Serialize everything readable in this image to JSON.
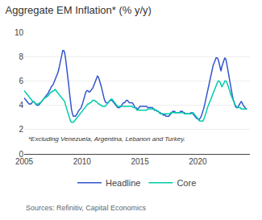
{
  "chart_data": {
    "type": "line",
    "title": "Aggregate EM Inflation* (% y/y)",
    "annotations": [
      "*Excluding Venezuela, Argentina, Lebanon and Turkey.",
      "Sources: Refinitiv, Capital Economics"
    ],
    "x": [
      2005.0,
      2005.08,
      2005.17,
      2005.25,
      2005.33,
      2005.42,
      2005.5,
      2005.58,
      2005.67,
      2005.75,
      2005.83,
      2005.92,
      2006.0,
      2006.08,
      2006.17,
      2006.25,
      2006.33,
      2006.42,
      2006.5,
      2006.58,
      2006.67,
      2006.75,
      2006.83,
      2006.92,
      2007.0,
      2007.08,
      2007.17,
      2007.25,
      2007.33,
      2007.42,
      2007.5,
      2007.58,
      2007.67,
      2007.75,
      2007.83,
      2007.92,
      2008.0,
      2008.08,
      2008.17,
      2008.25,
      2008.33,
      2008.42,
      2008.5,
      2008.58,
      2008.67,
      2008.75,
      2008.83,
      2008.92,
      2009.0,
      2009.08,
      2009.17,
      2009.25,
      2009.33,
      2009.42,
      2009.5,
      2009.58,
      2009.67,
      2009.75,
      2009.83,
      2009.92,
      2010.0,
      2010.08,
      2010.17,
      2010.25,
      2010.33,
      2010.42,
      2010.5,
      2010.58,
      2010.67,
      2010.75,
      2010.83,
      2010.92,
      2011.0,
      2011.08,
      2011.17,
      2011.25,
      2011.33,
      2011.42,
      2011.5,
      2011.58,
      2011.67,
      2011.75,
      2011.83,
      2011.92,
      2012.0,
      2012.08,
      2012.17,
      2012.25,
      2012.33,
      2012.42,
      2012.5,
      2012.58,
      2012.67,
      2012.75,
      2012.83,
      2012.92,
      2013.0,
      2013.08,
      2013.17,
      2013.25,
      2013.33,
      2013.42,
      2013.5,
      2013.58,
      2013.67,
      2013.75,
      2013.83,
      2013.92,
      2014.0,
      2014.08,
      2014.17,
      2014.25,
      2014.33,
      2014.42,
      2014.5,
      2014.58,
      2014.67,
      2014.75,
      2014.83,
      2014.92,
      2015.0,
      2015.08,
      2015.17,
      2015.25,
      2015.33,
      2015.42,
      2015.5,
      2015.58,
      2015.67,
      2015.75,
      2015.83,
      2015.92,
      2016.0,
      2016.08,
      2016.17,
      2016.25,
      2016.33,
      2016.42,
      2016.5,
      2016.58,
      2016.67,
      2016.75,
      2016.83,
      2016.92,
      2017.0,
      2017.08,
      2017.17,
      2017.25,
      2017.33,
      2017.42,
      2017.5,
      2017.58,
      2017.67,
      2017.75,
      2017.83,
      2017.92,
      2018.0,
      2018.08,
      2018.17,
      2018.25,
      2018.33,
      2018.42,
      2018.5,
      2018.58,
      2018.67,
      2018.75,
      2018.83,
      2018.92,
      2019.0,
      2019.08,
      2019.17,
      2019.25,
      2019.33,
      2019.42,
      2019.5,
      2019.58,
      2019.67,
      2019.75,
      2019.83,
      2019.92,
      2020.0,
      2020.08,
      2020.17,
      2020.25,
      2020.33,
      2020.42,
      2020.5,
      2020.58,
      2020.67,
      2020.75,
      2020.83,
      2020.92,
      2021.0,
      2021.08,
      2021.17,
      2021.25,
      2021.33,
      2021.42,
      2021.5,
      2021.58,
      2021.67,
      2021.75,
      2021.83,
      2021.92,
      2022.0,
      2022.08,
      2022.17,
      2022.25,
      2022.33,
      2022.42,
      2022.5,
      2022.58,
      2022.67,
      2022.75,
      2022.83,
      2022.92,
      2023.0,
      2023.08,
      2023.17,
      2023.25,
      2023.33,
      2023.42,
      2023.5,
      2023.58,
      2023.67,
      2023.75,
      2023.83,
      2023.92,
      2024.0,
      2024.08,
      2024.17,
      2024.25
    ],
    "series": [
      {
        "name": "Headline",
        "color": "#3355cc",
        "values": [
          4.6,
          4.5,
          4.4,
          4.3,
          4.2,
          4.1,
          4.1,
          4.1,
          4.2,
          4.3,
          4.3,
          4.2,
          4.1,
          4.0,
          4.0,
          4.0,
          4.1,
          4.2,
          4.3,
          4.4,
          4.5,
          4.6,
          4.7,
          4.8,
          4.9,
          5.0,
          5.2,
          5.3,
          5.5,
          5.6,
          5.7,
          5.9,
          6.1,
          6.3,
          6.5,
          6.7,
          7.0,
          7.4,
          7.8,
          8.2,
          8.5,
          8.5,
          8.3,
          7.8,
          7.2,
          6.5,
          5.8,
          5.0,
          4.2,
          3.7,
          3.3,
          3.1,
          3.1,
          3.1,
          3.2,
          3.3,
          3.5,
          3.6,
          3.7,
          3.8,
          4.0,
          4.3,
          4.6,
          4.9,
          5.1,
          5.2,
          5.2,
          5.1,
          5.1,
          5.2,
          5.3,
          5.4,
          5.6,
          5.8,
          6.1,
          6.3,
          6.4,
          6.3,
          6.1,
          5.8,
          5.5,
          5.1,
          4.8,
          4.5,
          4.3,
          4.2,
          4.2,
          4.2,
          4.3,
          4.4,
          4.4,
          4.4,
          4.3,
          4.2,
          4.1,
          4.0,
          3.9,
          3.8,
          3.8,
          3.8,
          3.9,
          4.0,
          4.1,
          4.2,
          4.2,
          4.3,
          4.4,
          4.4,
          4.3,
          4.2,
          4.2,
          4.2,
          4.2,
          4.1,
          3.9,
          3.8,
          3.8,
          3.7,
          3.7,
          3.8,
          3.9,
          3.9,
          3.9,
          3.9,
          3.9,
          3.9,
          3.9,
          3.9,
          3.8,
          3.8,
          3.8,
          3.8,
          3.8,
          3.8,
          3.7,
          3.6,
          3.6,
          3.6,
          3.5,
          3.5,
          3.4,
          3.4,
          3.3,
          3.3,
          3.2,
          3.2,
          3.2,
          3.1,
          3.1,
          3.1,
          3.1,
          3.2,
          3.3,
          3.4,
          3.5,
          3.5,
          3.5,
          3.4,
          3.4,
          3.4,
          3.4,
          3.4,
          3.5,
          3.5,
          3.5,
          3.4,
          3.4,
          3.3,
          3.3,
          3.3,
          3.3,
          3.3,
          3.3,
          3.4,
          3.4,
          3.3,
          3.2,
          3.1,
          3.0,
          2.9,
          2.9,
          2.8,
          2.9,
          3.0,
          3.2,
          3.4,
          3.7,
          4.0,
          4.4,
          4.8,
          5.1,
          5.5,
          5.9,
          6.3,
          6.7,
          7.0,
          7.3,
          7.5,
          7.8,
          7.9,
          7.9,
          7.8,
          7.5,
          7.1,
          6.8,
          7.2,
          7.5,
          7.8,
          7.9,
          7.8,
          7.5,
          7.0,
          6.5,
          6.0,
          5.5,
          5.0,
          4.7,
          4.4,
          4.1,
          3.9,
          3.8,
          3.8,
          3.9,
          4.1,
          4.2,
          4.3,
          4.2,
          4.0,
          3.9,
          3.8,
          3.7,
          3.7
        ]
      },
      {
        "name": "Core",
        "color": "#00ccaa",
        "values": [
          5.2,
          5.1,
          5.0,
          4.9,
          4.8,
          4.7,
          4.6,
          4.5,
          4.4,
          4.3,
          4.3,
          4.2,
          4.1,
          4.1,
          4.1,
          4.1,
          4.2,
          4.2,
          4.3,
          4.4,
          4.5,
          4.6,
          4.6,
          4.7,
          4.7,
          4.8,
          4.9,
          5.0,
          5.1,
          5.1,
          5.2,
          5.2,
          5.3,
          5.2,
          5.1,
          5.0,
          4.9,
          4.8,
          4.7,
          4.6,
          4.5,
          4.4,
          4.3,
          4.0,
          3.7,
          3.4,
          3.1,
          2.9,
          2.7,
          2.6,
          2.6,
          2.6,
          2.7,
          2.8,
          2.9,
          3.0,
          3.1,
          3.2,
          3.3,
          3.4,
          3.5,
          3.6,
          3.7,
          3.8,
          3.9,
          4.0,
          4.1,
          4.1,
          4.2,
          4.2,
          4.3,
          4.4,
          4.4,
          4.4,
          4.3,
          4.3,
          4.2,
          4.1,
          4.1,
          4.0,
          4.0,
          3.9,
          3.9,
          3.9,
          3.9,
          4.0,
          4.1,
          4.2,
          4.3,
          4.4,
          4.5,
          4.5,
          4.4,
          4.3,
          4.2,
          4.1,
          4.0,
          3.9,
          3.9,
          3.9,
          3.9,
          3.9,
          3.9,
          3.9,
          3.9,
          3.9,
          3.9,
          3.9,
          3.9,
          3.9,
          3.9,
          3.9,
          3.9,
          3.8,
          3.8,
          3.8,
          3.7,
          3.6,
          3.6,
          3.6,
          3.6,
          3.6,
          3.6,
          3.6,
          3.6,
          3.6,
          3.6,
          3.6,
          3.7,
          3.7,
          3.7,
          3.7,
          3.7,
          3.7,
          3.7,
          3.7,
          3.6,
          3.6,
          3.5,
          3.5,
          3.4,
          3.3,
          3.3,
          3.3,
          3.3,
          3.3,
          3.3,
          3.3,
          3.3,
          3.3,
          3.3,
          3.3,
          3.4,
          3.4,
          3.4,
          3.4,
          3.4,
          3.4,
          3.4,
          3.4,
          3.4,
          3.4,
          3.4,
          3.4,
          3.4,
          3.4,
          3.3,
          3.3,
          3.3,
          3.3,
          3.3,
          3.3,
          3.3,
          3.3,
          3.4,
          3.4,
          3.3,
          3.2,
          3.1,
          3.0,
          2.9,
          2.8,
          2.7,
          2.7,
          2.7,
          2.7,
          2.8,
          3.0,
          3.2,
          3.5,
          3.8,
          4.0,
          4.2,
          4.4,
          4.6,
          4.8,
          5.0,
          5.2,
          5.4,
          5.6,
          5.8,
          6.0,
          6.0,
          5.9,
          5.7,
          5.5,
          5.7,
          5.8,
          6.0,
          6.0,
          5.9,
          5.7,
          5.5,
          5.2,
          4.9,
          4.7,
          4.5,
          4.3,
          4.2,
          4.0,
          3.9,
          3.8,
          3.8,
          3.8,
          3.8,
          3.7,
          3.7,
          3.7,
          3.7,
          3.7,
          3.7,
          3.7
        ]
      }
    ],
    "xlim": [
      2005.0,
      2024.5
    ],
    "xticks": [
      2005,
      2010,
      2015,
      2020
    ],
    "ylim": [
      0,
      10
    ],
    "yticks": [
      0,
      2,
      4,
      6,
      8,
      10
    ],
    "grid": "y",
    "legend": "bottom"
  }
}
